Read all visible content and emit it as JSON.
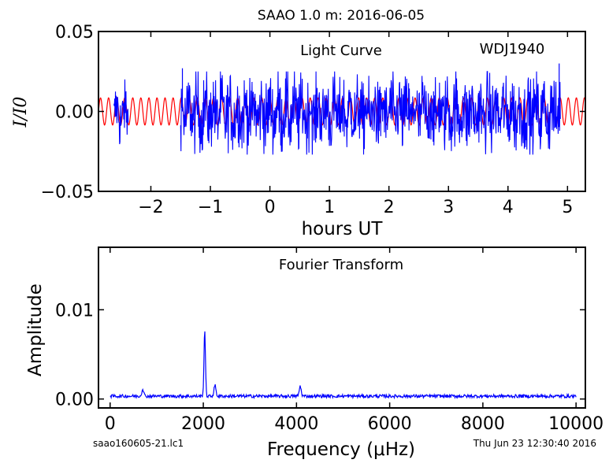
{
  "figure": {
    "title": "SAAO 1.0 m:  2016-06-05",
    "file_label": "saao160605-21.lc1",
    "timestamp": "Thu Jun 23 12:30:40 2016"
  },
  "chart_data": [
    {
      "type": "line",
      "panel": "light-curve",
      "annotation": "Light Curve",
      "target": "WDJ1940",
      "xlabel": "hours UT",
      "ylabel": "I/I0",
      "xlim": [
        -2.88,
        5.3
      ],
      "ylim": [
        -0.05,
        0.05
      ],
      "xticks": [
        -2,
        -1,
        0,
        1,
        2,
        3,
        4,
        5
      ],
      "xtick_labels": [
        "−2",
        "−1",
        "0",
        "1",
        "2",
        "3",
        "4",
        "5"
      ],
      "yticks": [
        -0.05,
        0.0,
        0.05
      ],
      "ytick_labels": [
        "−0.05",
        "0.00",
        "0.05"
      ],
      "grid": false,
      "series": [
        {
          "color": "#0000ff",
          "segments": [
            {
              "x_start": -2.62,
              "x_end": -2.38,
              "y_center": -0.002,
              "y_halfrange": 0.022
            },
            {
              "x_start": -1.5,
              "x_end": 4.88,
              "y_center": -0.001,
              "y_halfrange": 0.026
            }
          ],
          "peak_x": [
            -1.47,
            4.86
          ],
          "peak_y": [
            0.027,
            0.03
          ]
        },
        {
          "color": "#ff0000",
          "model": "sinusoid",
          "amplitude": 0.0085,
          "frequency_uHz": 2050,
          "x_range": [
            -2.88,
            5.3
          ]
        }
      ]
    },
    {
      "type": "line",
      "panel": "fourier-transform",
      "annotation": "Fourier Transform",
      "xlabel": "Frequency (μHz)",
      "ylabel": "Amplitude",
      "xlim": [
        -250,
        10200
      ],
      "ylim": [
        -0.001,
        0.017
      ],
      "xticks": [
        0,
        2000,
        4000,
        6000,
        8000,
        10000
      ],
      "xtick_labels": [
        "0",
        "2000",
        "4000",
        "6000",
        "8000",
        "10000"
      ],
      "yticks": [
        0.0,
        0.01
      ],
      "ytick_labels": [
        "0.00",
        "0.01"
      ],
      "grid": false,
      "series": [
        {
          "color": "#0000ff",
          "x_range": [
            0,
            10000
          ],
          "noise_level": 0.0004,
          "peaks": [
            {
              "x": 2030,
              "y": 0.0074
            },
            {
              "x": 2250,
              "y": 0.0012
            },
            {
              "x": 4080,
              "y": 0.0011
            },
            {
              "x": 700,
              "y": 0.0008
            }
          ]
        }
      ]
    }
  ]
}
